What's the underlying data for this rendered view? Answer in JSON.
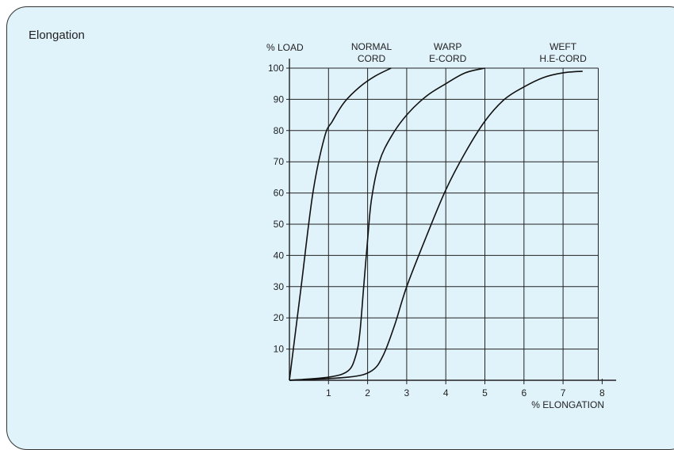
{
  "page": {
    "title": "Elongation"
  },
  "chart_data": {
    "type": "line",
    "ylabel": "% LOAD",
    "xlabel": "% ELONGATION",
    "xlim": [
      0,
      8
    ],
    "ylim": [
      0,
      100
    ],
    "x_ticks": [
      "1",
      "2",
      "3",
      "4",
      "5",
      "6",
      "7",
      "8"
    ],
    "y_ticks": [
      "10",
      "20",
      "30",
      "40",
      "50",
      "60",
      "70",
      "80",
      "90",
      "100"
    ],
    "grid": true,
    "series": [
      {
        "name": "NORMAL CORD",
        "label_lines": [
          "NORMAL",
          "CORD"
        ],
        "label_x": 2.1,
        "points": [
          [
            0,
            0
          ],
          [
            0.3,
            30
          ],
          [
            0.6,
            60
          ],
          [
            0.9,
            78
          ],
          [
            1.1,
            83
          ],
          [
            1.4,
            89
          ],
          [
            1.8,
            94
          ],
          [
            2.2,
            97.5
          ],
          [
            2.6,
            100
          ]
        ]
      },
      {
        "name": "WARP E-CORD",
        "label_lines": [
          "WARP",
          "E-CORD"
        ],
        "label_x": 4.05,
        "points": [
          [
            0,
            0
          ],
          [
            1.0,
            1
          ],
          [
            1.5,
            3
          ],
          [
            1.7,
            8
          ],
          [
            1.8,
            15
          ],
          [
            1.9,
            30
          ],
          [
            2.0,
            45
          ],
          [
            2.1,
            58
          ],
          [
            2.3,
            70
          ],
          [
            2.6,
            78
          ],
          [
            3.0,
            85
          ],
          [
            3.5,
            91
          ],
          [
            4.0,
            95
          ],
          [
            4.5,
            98.5
          ],
          [
            5.0,
            100
          ]
        ]
      },
      {
        "name": "WEFT H.E-CORD",
        "label_lines": [
          "WEFT",
          "H.E-CORD"
        ],
        "label_x": 7.0,
        "points": [
          [
            0,
            0
          ],
          [
            1.5,
            1
          ],
          [
            2.1,
            3
          ],
          [
            2.4,
            8
          ],
          [
            2.7,
            18
          ],
          [
            3.0,
            30
          ],
          [
            3.5,
            46
          ],
          [
            4.0,
            61
          ],
          [
            4.5,
            73
          ],
          [
            5.0,
            83
          ],
          [
            5.5,
            90
          ],
          [
            6.0,
            94
          ],
          [
            6.5,
            97
          ],
          [
            7.0,
            98.5
          ],
          [
            7.5,
            99
          ]
        ]
      }
    ]
  }
}
